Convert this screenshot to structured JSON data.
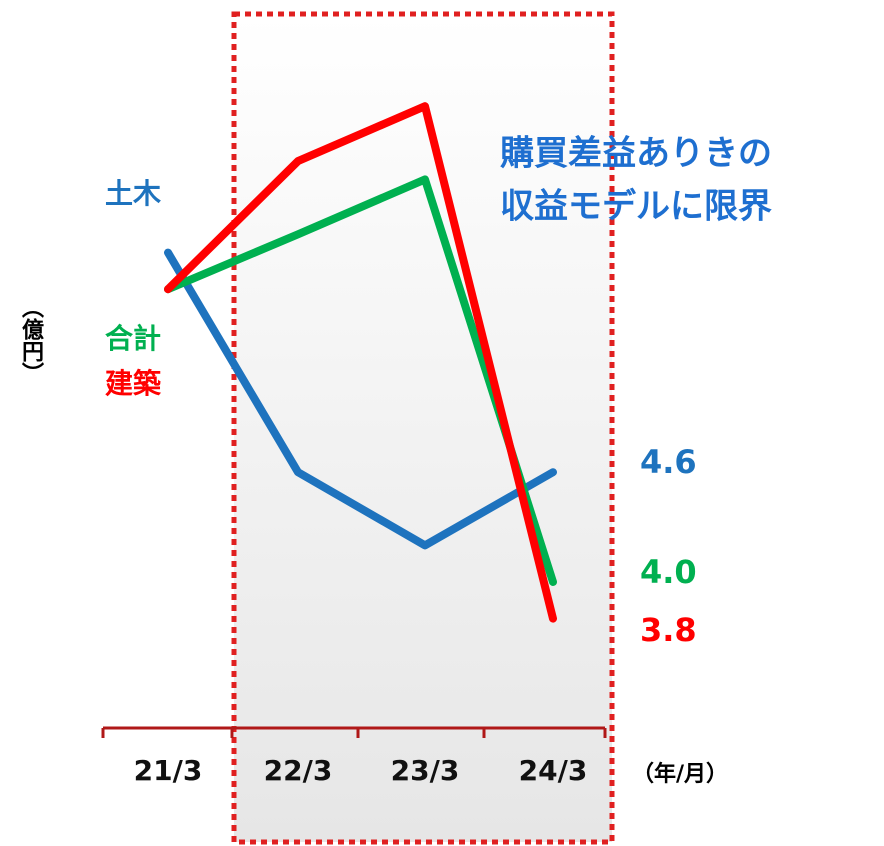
{
  "chart_data": {
    "type": "line",
    "categories": [
      "21/3",
      "22/3",
      "23/3",
      "24/3"
    ],
    "series": [
      {
        "name": "土木",
        "color": "#1e73be",
        "values": [
          5.8,
          4.6,
          4.2,
          4.6
        ],
        "value_labels": [
          null,
          null,
          null,
          "4.6"
        ]
      },
      {
        "name": "合計",
        "color": "#00b050",
        "values": [
          5.6,
          5.9,
          6.2,
          4.0
        ],
        "value_labels": [
          null,
          null,
          null,
          "4.0"
        ]
      },
      {
        "name": "建築",
        "color": "#ff0000",
        "values": [
          5.6,
          6.3,
          6.6,
          3.8
        ],
        "value_labels": [
          null,
          null,
          null,
          "3.8"
        ]
      }
    ],
    "ylim": [
      3.0,
      7.0
    ],
    "y_label": "（億円）",
    "x_label": "（年/月）",
    "annotation": [
      "購買差益ありきの",
      "収益モデルに限界"
    ]
  }
}
